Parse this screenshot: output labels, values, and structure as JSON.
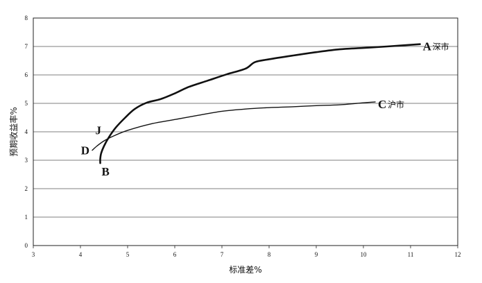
{
  "chart_data": {
    "type": "line",
    "xlabel": "标准差%",
    "ylabel": "预期收益率%",
    "xlim": [
      3,
      12
    ],
    "ylim": [
      0,
      8
    ],
    "x_ticks": [
      3,
      4,
      5,
      6,
      7,
      8,
      9,
      10,
      11,
      12
    ],
    "y_ticks": [
      0,
      1,
      2,
      3,
      4,
      5,
      6,
      7,
      8
    ],
    "grid": {
      "horizontal": true,
      "vertical": false
    },
    "series": [
      {
        "name": "深市",
        "end_label": "A",
        "line_weight": "thick",
        "color": "#111111",
        "points": [
          [
            4.42,
            2.9
          ],
          [
            4.42,
            3.05
          ],
          [
            4.44,
            3.25
          ],
          [
            4.5,
            3.5
          ],
          [
            4.6,
            3.8
          ],
          [
            4.75,
            4.15
          ],
          [
            4.95,
            4.5
          ],
          [
            5.15,
            4.8
          ],
          [
            5.4,
            5.02
          ],
          [
            5.7,
            5.15
          ],
          [
            6.0,
            5.35
          ],
          [
            6.3,
            5.58
          ],
          [
            6.7,
            5.8
          ],
          [
            7.1,
            6.02
          ],
          [
            7.5,
            6.22
          ],
          [
            7.7,
            6.45
          ],
          [
            8.0,
            6.55
          ],
          [
            8.5,
            6.68
          ],
          [
            9.0,
            6.8
          ],
          [
            9.5,
            6.9
          ],
          [
            10.0,
            6.95
          ],
          [
            10.5,
            7.0
          ],
          [
            11.2,
            7.08
          ]
        ]
      },
      {
        "name": "沪市",
        "end_label": "C",
        "line_weight": "thin",
        "color": "#111111",
        "points": [
          [
            4.25,
            3.35
          ],
          [
            4.35,
            3.5
          ],
          [
            4.5,
            3.68
          ],
          [
            4.7,
            3.85
          ],
          [
            5.0,
            4.05
          ],
          [
            5.5,
            4.28
          ],
          [
            6.0,
            4.43
          ],
          [
            6.5,
            4.58
          ],
          [
            7.0,
            4.72
          ],
          [
            7.5,
            4.8
          ],
          [
            8.0,
            4.85
          ],
          [
            8.5,
            4.88
          ],
          [
            9.0,
            4.92
          ],
          [
            9.5,
            4.95
          ],
          [
            10.0,
            5.02
          ],
          [
            10.25,
            5.05
          ]
        ]
      }
    ],
    "annotations": [
      {
        "label": "J",
        "x": 4.5,
        "y": 3.72,
        "anchor": "upper-left"
      },
      {
        "label": "D",
        "x": 4.25,
        "y": 3.35,
        "anchor": "left"
      },
      {
        "label": "B",
        "x": 4.42,
        "y": 2.9,
        "anchor": "lower-right"
      }
    ]
  }
}
